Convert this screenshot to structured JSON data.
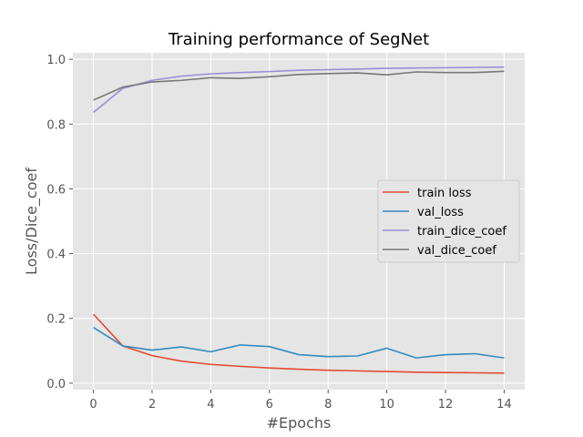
{
  "chart_data": {
    "type": "line",
    "title": "Training performance of SegNet",
    "xlabel": "#Epochs",
    "ylabel": "Loss/Dice_coef",
    "xlim": [
      -0.7,
      14.7
    ],
    "ylim": [
      -0.02,
      1.02
    ],
    "xticks": [
      0,
      2,
      4,
      6,
      8,
      10,
      12,
      14
    ],
    "yticks": [
      0.0,
      0.2,
      0.4,
      0.6,
      0.8,
      1.0
    ],
    "grid": true,
    "legend_position": "center-right",
    "x": [
      0,
      1,
      2,
      3,
      4,
      5,
      6,
      7,
      8,
      9,
      10,
      11,
      12,
      13,
      14
    ],
    "series": [
      {
        "name": "train loss",
        "color": "#E24A33",
        "values": [
          0.213,
          0.115,
          0.085,
          0.068,
          0.058,
          0.052,
          0.047,
          0.043,
          0.04,
          0.038,
          0.036,
          0.034,
          0.033,
          0.032,
          0.031
        ]
      },
      {
        "name": "val_loss",
        "color": "#348ABD",
        "values": [
          0.172,
          0.115,
          0.102,
          0.112,
          0.097,
          0.118,
          0.113,
          0.088,
          0.082,
          0.084,
          0.108,
          0.078,
          0.088,
          0.091,
          0.078
        ]
      },
      {
        "name": "train_dice_coef",
        "color": "#988ED5",
        "values": [
          0.836,
          0.91,
          0.935,
          0.948,
          0.955,
          0.959,
          0.962,
          0.966,
          0.968,
          0.97,
          0.972,
          0.973,
          0.974,
          0.975,
          0.976
        ]
      },
      {
        "name": "val_dice_coef",
        "color": "#777777",
        "values": [
          0.874,
          0.914,
          0.93,
          0.935,
          0.943,
          0.941,
          0.946,
          0.953,
          0.956,
          0.958,
          0.952,
          0.961,
          0.959,
          0.959,
          0.963
        ]
      }
    ]
  }
}
